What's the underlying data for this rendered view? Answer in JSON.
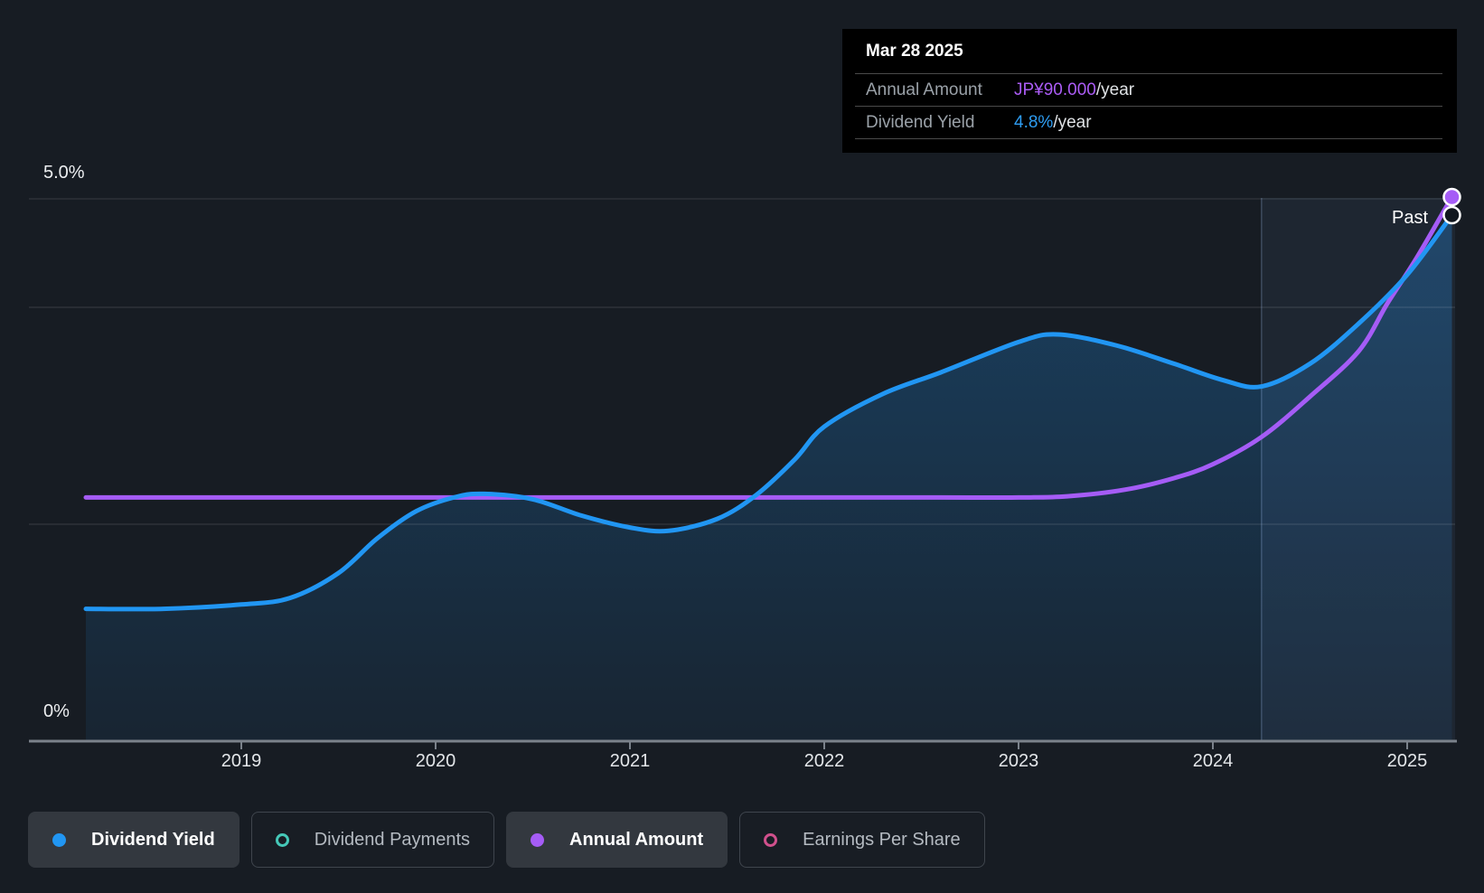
{
  "colors": {
    "background": "#171c23",
    "tooltip_background": "#000000",
    "accent_blue": "#2196f3",
    "accent_purple": "#a55cf6",
    "accent_teal": "#45c8b8",
    "accent_pink": "#d0508c",
    "tooltip_value_purple": "#ab5cf5",
    "tooltip_value_blue": "#2e9df2"
  },
  "tooltip": {
    "date": "Mar 28 2025",
    "rows": [
      {
        "label": "Annual Amount",
        "value": "JP¥90.000",
        "suffix": "/year",
        "value_color": "#ab5cf5"
      },
      {
        "label": "Dividend Yield",
        "value": "4.8%",
        "suffix": "/year",
        "value_color": "#2e9df2"
      }
    ]
  },
  "legend": {
    "items": [
      {
        "label": "Dividend Yield",
        "color": "#2196f3",
        "style": "filled",
        "active": true
      },
      {
        "label": "Dividend Payments",
        "color": "#45c8b8",
        "style": "hollow",
        "active": false
      },
      {
        "label": "Annual Amount",
        "color": "#a55cf6",
        "style": "filled",
        "active": true
      },
      {
        "label": "Earnings Per Share",
        "color": "#d0508c",
        "style": "hollow",
        "active": false
      }
    ]
  },
  "chart_data": {
    "type": "line",
    "past_label": "Past",
    "past_divider_year": 2024.25,
    "x_axis": {
      "ticks": [
        2019,
        2020,
        2021,
        2022,
        2023,
        2024,
        2025
      ],
      "min": 2018.2,
      "max": 2025.35
    },
    "y_axis": {
      "label_top": "5.0%",
      "label_bottom": "0%",
      "min": 0,
      "max": 5.0,
      "unit": "%",
      "gridlines_pct": [
        5.0,
        4.0,
        2.0,
        0
      ]
    },
    "amount_axis": {
      "min": 0,
      "value_at_top": 90,
      "unit": "JP¥"
    },
    "series": [
      {
        "name": "Dividend Yield",
        "unit": "%",
        "color": "#2196f3",
        "current_value": "4.8%/year",
        "points": [
          [
            2018.2,
            1.22
          ],
          [
            2018.6,
            1.22
          ],
          [
            2019.0,
            1.26
          ],
          [
            2019.25,
            1.32
          ],
          [
            2019.5,
            1.55
          ],
          [
            2019.7,
            1.87
          ],
          [
            2019.9,
            2.12
          ],
          [
            2020.1,
            2.25
          ],
          [
            2020.25,
            2.28
          ],
          [
            2020.5,
            2.23
          ],
          [
            2020.75,
            2.08
          ],
          [
            2021.0,
            1.97
          ],
          [
            2021.2,
            1.94
          ],
          [
            2021.45,
            2.05
          ],
          [
            2021.65,
            2.27
          ],
          [
            2021.85,
            2.6
          ],
          [
            2022.0,
            2.9
          ],
          [
            2022.3,
            3.2
          ],
          [
            2022.6,
            3.4
          ],
          [
            2023.0,
            3.68
          ],
          [
            2023.2,
            3.75
          ],
          [
            2023.5,
            3.65
          ],
          [
            2023.8,
            3.48
          ],
          [
            2024.05,
            3.33
          ],
          [
            2024.25,
            3.27
          ],
          [
            2024.5,
            3.48
          ],
          [
            2024.75,
            3.85
          ],
          [
            2025.0,
            4.3
          ],
          [
            2025.23,
            4.85
          ]
        ]
      },
      {
        "name": "Annual Amount",
        "unit": "JP¥/year",
        "color": "#a55cf6",
        "current_value": "JP¥90.000/year",
        "points": [
          [
            2018.2,
            40.3
          ],
          [
            2019.0,
            40.3
          ],
          [
            2020.0,
            40.3
          ],
          [
            2021.0,
            40.3
          ],
          [
            2022.0,
            40.3
          ],
          [
            2022.6,
            40.3
          ],
          [
            2023.0,
            40.3
          ],
          [
            2023.25,
            40.5
          ],
          [
            2023.55,
            41.6
          ],
          [
            2023.8,
            43.5
          ],
          [
            2024.0,
            45.8
          ],
          [
            2024.25,
            50.3
          ],
          [
            2024.5,
            57.0
          ],
          [
            2024.75,
            64.5
          ],
          [
            2024.9,
            72.5
          ],
          [
            2025.05,
            80.0
          ],
          [
            2025.23,
            90.0
          ]
        ]
      }
    ]
  }
}
